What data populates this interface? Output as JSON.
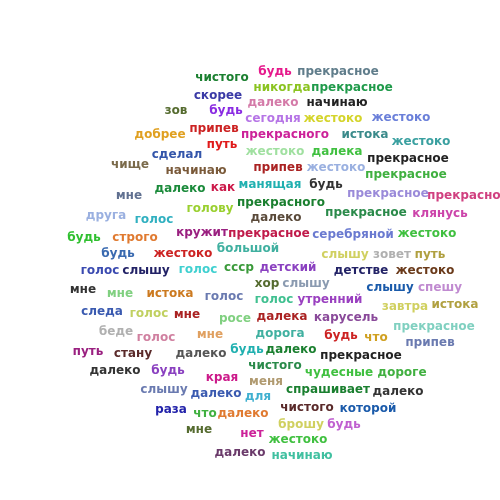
{
  "words": [
    {
      "text": "будь",
      "color": "#e6198c"
    },
    {
      "text": "прекрасное",
      "color": "#607d8b"
    },
    {
      "text": "чистого",
      "color": "#1a7f2f"
    },
    {
      "text": "никогда",
      "color": "#8ac31f"
    },
    {
      "text": "прекрасное",
      "color": "#1f9a4a"
    },
    {
      "text": "скорее",
      "color": "#3a3aa6"
    },
    {
      "text": "зов",
      "color": "#556b2f"
    },
    {
      "text": "будь",
      "color": "#8a2be2"
    },
    {
      "text": "далеко",
      "color": "#d47aa8"
    },
    {
      "text": "начинаю",
      "color": "#222222"
    },
    {
      "text": "сегодня",
      "color": "#b675e6"
    },
    {
      "text": "жестоко",
      "color": "#d4d42a"
    },
    {
      "text": "жестоко",
      "color": "#6a7fd9"
    },
    {
      "text": "добрее",
      "color": "#e0a020"
    },
    {
      "text": "припев",
      "color": "#cc2222"
    },
    {
      "text": "прекрасного",
      "color": "#cc2299"
    },
    {
      "text": "истока",
      "color": "#3a8a8a"
    },
    {
      "text": "жестоко",
      "color": "#3aa0a0"
    },
    {
      "text": "путь",
      "color": "#e01a1a"
    },
    {
      "text": "сделал",
      "color": "#3355aa"
    },
    {
      "text": "жестоко",
      "color": "#a0e0a0"
    },
    {
      "text": "далека",
      "color": "#40c040"
    },
    {
      "text": "прекрасное",
      "color": "#222222"
    },
    {
      "text": "чище",
      "color": "#7a6a4a"
    },
    {
      "text": "начинаю",
      "color": "#7a5a3a"
    },
    {
      "text": "припев",
      "color": "#aa2222"
    },
    {
      "text": "жестоко",
      "color": "#9ab0e0"
    },
    {
      "text": "прекрасное",
      "color": "#40b040"
    },
    {
      "text": "мне",
      "color": "#607090"
    },
    {
      "text": "далеко",
      "color": "#1a8a3a"
    },
    {
      "text": "как",
      "color": "#cc1a4a"
    },
    {
      "text": "манящая",
      "color": "#20b0b0"
    },
    {
      "text": "будь",
      "color": "#333333"
    },
    {
      "text": "прекрасное",
      "color": "#9a8ad9"
    },
    {
      "text": "прекрасное",
      "color": "#d04080"
    },
    {
      "text": "друга",
      "color": "#9ab0e0"
    },
    {
      "text": "голос",
      "color": "#30b0c0"
    },
    {
      "text": "голову",
      "color": "#9ad030"
    },
    {
      "text": "прекрасного",
      "color": "#1a7f2f"
    },
    {
      "text": "далеко",
      "color": "#5a4a3a"
    },
    {
      "text": "прекрасное",
      "color": "#2a8a4a"
    },
    {
      "text": "клянусь",
      "color": "#cc44aa"
    },
    {
      "text": "будь",
      "color": "#30c030"
    },
    {
      "text": "строго",
      "color": "#e07a30"
    },
    {
      "text": "кружит",
      "color": "#9a2080"
    },
    {
      "text": "прекрасное",
      "color": "#c01a4a"
    },
    {
      "text": "серебряной",
      "color": "#6a7ad0"
    },
    {
      "text": "жестоко",
      "color": "#40c040"
    },
    {
      "text": "будь",
      "color": "#3a6ab0"
    },
    {
      "text": "жестоко",
      "color": "#cc2222"
    },
    {
      "text": "большой",
      "color": "#40b0a0"
    },
    {
      "text": "слышу",
      "color": "#d0d060"
    },
    {
      "text": "зовет",
      "color": "#b0b0b0"
    },
    {
      "text": "путь",
      "color": "#b0a040"
    },
    {
      "text": "голос",
      "color": "#3a4ab0"
    },
    {
      "text": "слышу",
      "color": "#222266"
    },
    {
      "text": "голос",
      "color": "#40d0d0"
    },
    {
      "text": "ссср",
      "color": "#3a9a3a"
    },
    {
      "text": "детский",
      "color": "#8a40c0"
    },
    {
      "text": "детстве",
      "color": "#222266"
    },
    {
      "text": "жестоко",
      "color": "#6a3a1a"
    },
    {
      "text": "хор",
      "color": "#556b2f"
    },
    {
      "text": "слышу",
      "color": "#8a9ab0"
    },
    {
      "text": "мне",
      "color": "#333333"
    },
    {
      "text": "мне",
      "color": "#80d080"
    },
    {
      "text": "истока",
      "color": "#cc7a20"
    },
    {
      "text": "голос",
      "color": "#6a7ab0"
    },
    {
      "text": "голос",
      "color": "#40c090"
    },
    {
      "text": "утренний",
      "color": "#9a40c0"
    },
    {
      "text": "слышу",
      "color": "#1a5aaa"
    },
    {
      "text": "спешу",
      "color": "#c08ad0"
    },
    {
      "text": "завтра",
      "color": "#d0d060"
    },
    {
      "text": "истока",
      "color": "#b0a040"
    },
    {
      "text": "следа",
      "color": "#3a5ab0"
    },
    {
      "text": "голос",
      "color": "#c0d060"
    },
    {
      "text": "мне",
      "color": "#aa2222"
    },
    {
      "text": "росе",
      "color": "#80d080"
    },
    {
      "text": "далека",
      "color": "#aa2222"
    },
    {
      "text": "карусель",
      "color": "#8a4a9a"
    },
    {
      "text": "беде",
      "color": "#b0b0b0"
    },
    {
      "text": "голос",
      "color": "#d080a0"
    },
    {
      "text": "мне",
      "color": "#e0a060"
    },
    {
      "text": "дорога",
      "color": "#40b0a0"
    },
    {
      "text": "будь",
      "color": "#cc2222"
    },
    {
      "text": "что",
      "color": "#d0a020"
    },
    {
      "text": "прекрасное",
      "color": "#80d0c0"
    },
    {
      "text": "припев",
      "color": "#6a7ab0"
    },
    {
      "text": "путь",
      "color": "#9a2080"
    },
    {
      "text": "стану",
      "color": "#5a2a2a"
    },
    {
      "text": "далеко",
      "color": "#555555"
    },
    {
      "text": "будь",
      "color": "#20b0b0"
    },
    {
      "text": "далеко",
      "color": "#1a7f2f"
    },
    {
      "text": "прекрасное",
      "color": "#222222"
    },
    {
      "text": "далеко",
      "color": "#333333"
    },
    {
      "text": "будь",
      "color": "#8a40c0"
    },
    {
      "text": "чистого",
      "color": "#2a8a4a"
    },
    {
      "text": "чудесные",
      "color": "#40c040"
    },
    {
      "text": "дороге",
      "color": "#40b040"
    },
    {
      "text": "края",
      "color": "#cc1a8a"
    },
    {
      "text": "меня",
      "color": "#b09a70"
    },
    {
      "text": "слышу",
      "color": "#6a7ab0"
    },
    {
      "text": "далеко",
      "color": "#3a5ab0"
    },
    {
      "text": "для",
      "color": "#40b0d0"
    },
    {
      "text": "спрашивает",
      "color": "#1a7f2f"
    },
    {
      "text": "далеко",
      "color": "#333333"
    },
    {
      "text": "раза",
      "color": "#2222aa"
    },
    {
      "text": "что",
      "color": "#40b040"
    },
    {
      "text": "далеко",
      "color": "#e07a30"
    },
    {
      "text": "чистого",
      "color": "#5a2a2a"
    },
    {
      "text": "которой",
      "color": "#1a5aaa"
    },
    {
      "text": "брошу",
      "color": "#d0d060"
    },
    {
      "text": "будь",
      "color": "#c060d0"
    },
    {
      "text": "мне",
      "color": "#556b2f"
    },
    {
      "text": "нет",
      "color": "#cc2299"
    },
    {
      "text": "жестоко",
      "color": "#40c040"
    },
    {
      "text": "далеко",
      "color": "#6a3a6a"
    },
    {
      "text": "начинаю",
      "color": "#40c0a0"
    }
  ]
}
